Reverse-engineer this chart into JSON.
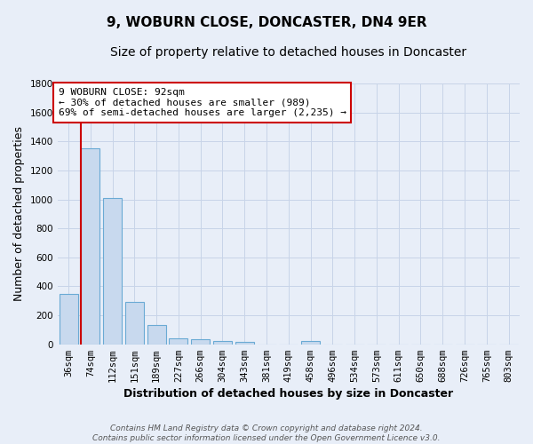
{
  "title": "9, WOBURN CLOSE, DONCASTER, DN4 9ER",
  "subtitle": "Size of property relative to detached houses in Doncaster",
  "xlabel": "Distribution of detached houses by size in Doncaster",
  "ylabel": "Number of detached properties",
  "bar_labels": [
    "36sqm",
    "74sqm",
    "112sqm",
    "151sqm",
    "189sqm",
    "227sqm",
    "266sqm",
    "304sqm",
    "343sqm",
    "381sqm",
    "419sqm",
    "458sqm",
    "496sqm",
    "534sqm",
    "573sqm",
    "611sqm",
    "650sqm",
    "688sqm",
    "726sqm",
    "765sqm",
    "803sqm"
  ],
  "bar_heights": [
    350,
    1350,
    1010,
    290,
    130,
    40,
    35,
    25,
    15,
    0,
    0,
    20,
    0,
    0,
    0,
    0,
    0,
    0,
    0,
    0,
    0
  ],
  "bar_color": "#c8d9ee",
  "bar_edge_color": "#6aaad4",
  "grid_color": "#c8d4e8",
  "bg_color": "#e8eef8",
  "plot_bg_color": "#e8eef8",
  "vline_x_index": 1,
  "vline_color": "#cc0000",
  "annotation_text": "9 WOBURN CLOSE: 92sqm\n← 30% of detached houses are smaller (989)\n69% of semi-detached houses are larger (2,235) →",
  "annotation_box_color": "#ffffff",
  "annotation_box_edge": "#cc0000",
  "ylim": [
    0,
    1800
  ],
  "footnote": "Contains HM Land Registry data © Crown copyright and database right 2024.\nContains public sector information licensed under the Open Government Licence v3.0.",
  "title_fontsize": 11,
  "subtitle_fontsize": 10,
  "xlabel_fontsize": 9,
  "ylabel_fontsize": 9,
  "tick_fontsize": 7.5,
  "annot_fontsize": 8
}
